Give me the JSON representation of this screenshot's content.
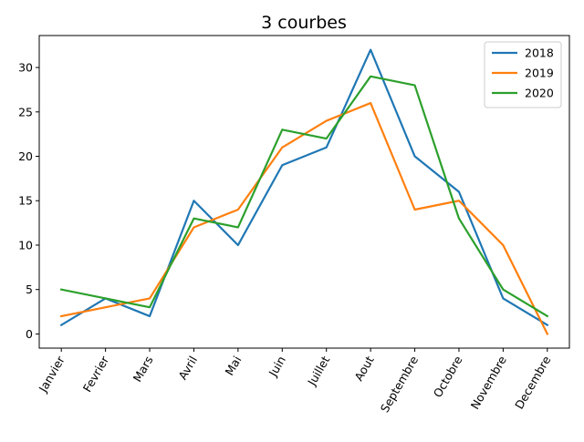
{
  "chart_data": {
    "type": "line",
    "title": "3 courbes",
    "xlabel": "",
    "ylabel": "",
    "categories": [
      "Janvier",
      "Fevrier",
      "Mars",
      "Avril",
      "Mai",
      "Juin",
      "Juillet",
      "Aout",
      "Septembre",
      "Octobre",
      "Novembre",
      "Decembre"
    ],
    "ylim": [
      -1.6,
      33.6
    ],
    "yticks": [
      0,
      5,
      10,
      15,
      20,
      25,
      30
    ],
    "grid": false,
    "legend_position": "top-right",
    "series": [
      {
        "name": "2018",
        "color": "#1f77b4",
        "values": [
          1,
          4,
          2,
          15,
          10,
          19,
          21,
          32,
          20,
          16,
          4,
          1
        ]
      },
      {
        "name": "2019",
        "color": "#ff7f0e",
        "values": [
          2,
          3,
          4,
          12,
          14,
          21,
          24,
          26,
          14,
          15,
          10,
          0
        ]
      },
      {
        "name": "2020",
        "color": "#2ca02c",
        "values": [
          5,
          4,
          3,
          13,
          12,
          23,
          22,
          29,
          28,
          13,
          5,
          2
        ]
      }
    ]
  }
}
